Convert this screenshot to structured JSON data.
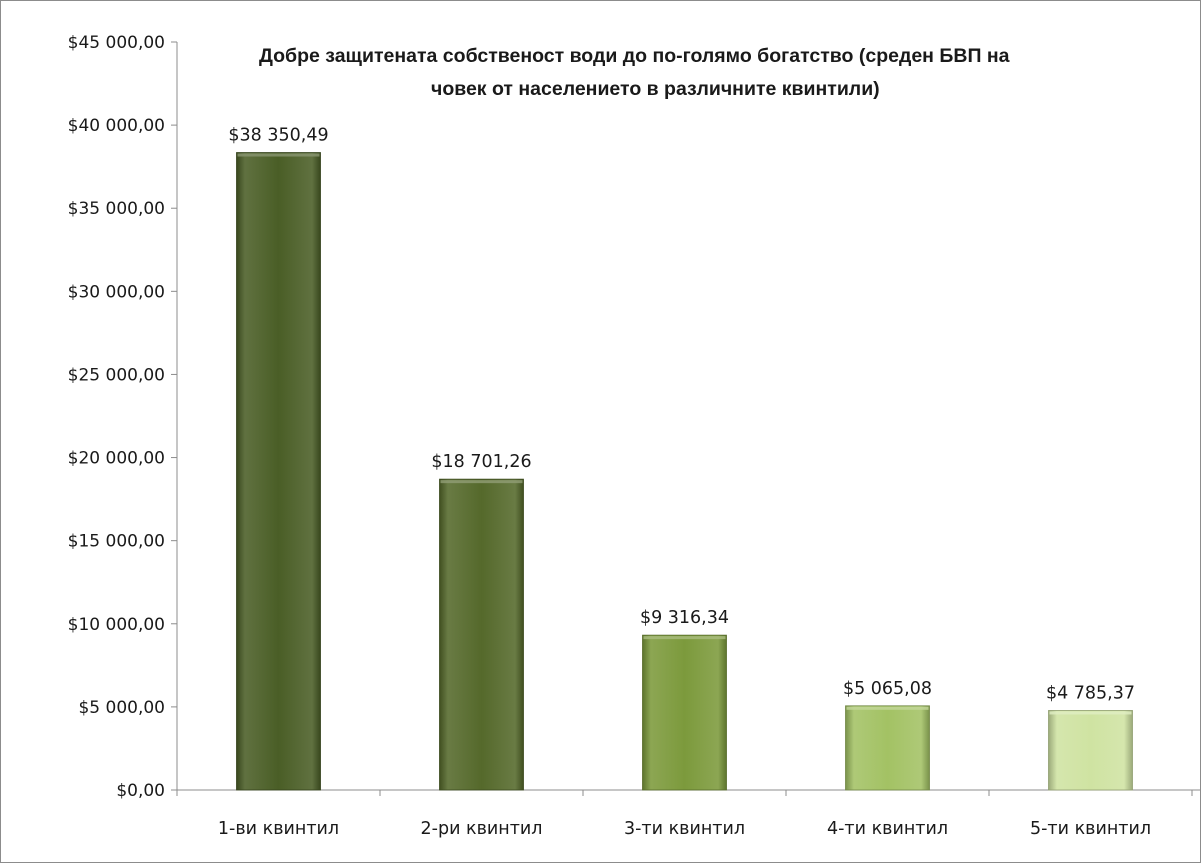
{
  "chart_data": {
    "type": "bar",
    "title_lines": [
      "Добре защитената собственост води до по-голямо  богатство (среден БВП на",
      "човек от населението в различните квинтили)"
    ],
    "xlabel": "",
    "ylabel": "",
    "categories": [
      "1-ви квинтил",
      "2-ри квинтил",
      "3-ти квинтил",
      "4-ти квинтил",
      "5-ти квинтил"
    ],
    "values": [
      38350.49,
      18701.26,
      9316.34,
      5065.08,
      4785.37
    ],
    "data_labels": [
      "$38 350,49",
      "$18 701,26",
      "$9 316,34",
      "$5 065,08",
      "$4 785,37"
    ],
    "ylim": [
      0,
      45000
    ],
    "y_ticks": [
      0,
      5000,
      10000,
      15000,
      20000,
      25000,
      30000,
      35000,
      40000,
      45000
    ],
    "y_tick_labels": [
      "$0,00",
      "$5 000,00",
      "$10 000,00",
      "$15 000,00",
      "$20 000,00",
      "$25 000,00",
      "$30 000,00",
      "$35 000,00",
      "$40 000,00",
      "$45 000,00"
    ],
    "grid": false,
    "legend": "none",
    "bar_colors": [
      "#4a5e26",
      "#55692b",
      "#7c9a3c",
      "#a3c264",
      "#cfe3a2"
    ]
  }
}
